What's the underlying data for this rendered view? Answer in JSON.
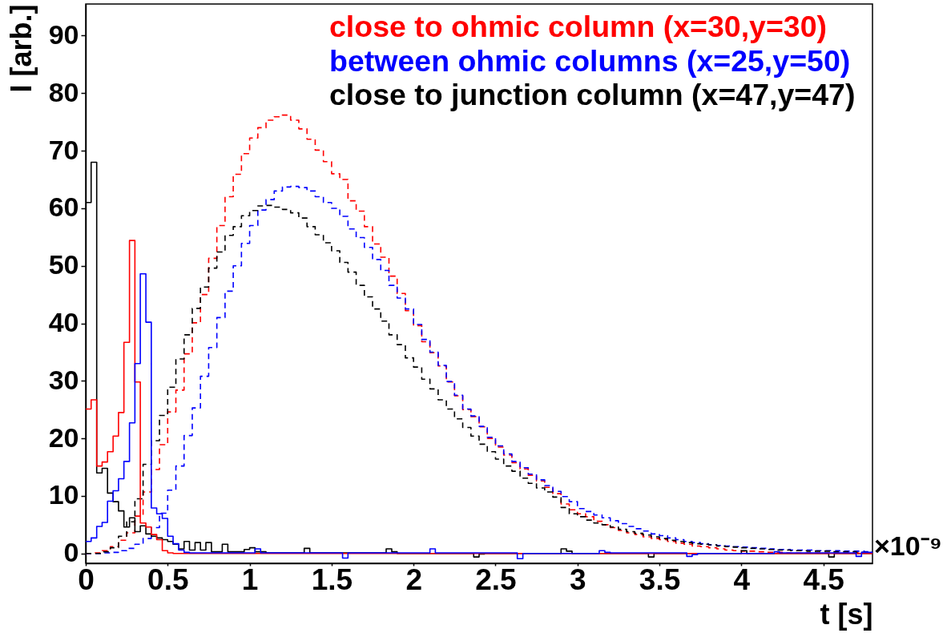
{
  "chart_data": {
    "type": "step",
    "xlabel": "t [s]",
    "ylabel": "I [arb.]",
    "xlim": [
      0,
      4.8
    ],
    "ylim": [
      -1.7,
      95.5
    ],
    "xticks": [
      0,
      0.5,
      1,
      1.5,
      2,
      2.5,
      3,
      3.5,
      4,
      4.5
    ],
    "yticks": [
      0,
      10,
      20,
      30,
      40,
      50,
      60,
      70,
      80,
      90
    ],
    "legend": "top right",
    "annotations": [
      "×10⁻⁹"
    ],
    "x": [
      0,
      0.05,
      0.1,
      0.15,
      0.2,
      0.25,
      0.3,
      0.35,
      0.4,
      0.45,
      0.5,
      0.55,
      0.6,
      0.65,
      0.7,
      0.75,
      0.8,
      0.85,
      0.9,
      0.95,
      1.0,
      1.05,
      1.1,
      1.15,
      1.2,
      1.25,
      1.3,
      1.35,
      1.4,
      1.45,
      1.5,
      1.55,
      1.6,
      1.65,
      1.7,
      1.75,
      1.8,
      1.85,
      1.9,
      1.95,
      2.0,
      2.05,
      2.1,
      2.15,
      2.2,
      2.25,
      2.3,
      2.35,
      2.4,
      2.45,
      2.5,
      2.55,
      2.6,
      2.65,
      2.7,
      2.75,
      2.8,
      2.85,
      2.9,
      2.95,
      3.0,
      3.05,
      3.1,
      3.15,
      3.2,
      3.25,
      3.3,
      3.35,
      3.4,
      3.45,
      3.5,
      3.55,
      3.6,
      3.65,
      3.7,
      3.75,
      3.8,
      3.85,
      3.9,
      3.95,
      4.0,
      4.05,
      4.1,
      4.15,
      4.2,
      4.25,
      4.3,
      4.35,
      4.4,
      4.45,
      4.5,
      4.55,
      4.6,
      4.65,
      4.7,
      4.75,
      4.8
    ],
    "series": [
      {
        "name": "close to ohmic column (x=30,y=30)",
        "color": "#ff0000",
        "line_style": "dashed",
        "values": [
          0,
          0.1,
          0.5,
          1.2,
          2.3,
          3.6,
          6.5,
          10.7,
          14.6,
          18.9,
          24.6,
          28.4,
          34.7,
          40.1,
          45.0,
          51.3,
          57.0,
          62.0,
          65.9,
          69.5,
          72.2,
          74.0,
          75.3,
          75.9,
          76.2,
          75.3,
          73.8,
          72.0,
          70.1,
          68.1,
          66.0,
          65.0,
          61.3,
          59.5,
          56.8,
          53.8,
          51.5,
          48.2,
          45.2,
          42.2,
          39.6,
          36.8,
          34.9,
          32.6,
          29.8,
          27.4,
          25.0,
          23.8,
          22.0,
          20.0,
          18.5,
          17.1,
          15.8,
          14.7,
          13.6,
          12.6,
          11.5,
          10.4,
          8.6,
          7.6,
          6.9,
          6.4,
          5.6,
          5.0,
          4.5,
          4.0,
          3.6,
          3.3,
          2.9,
          2.6,
          2.4,
          2.1,
          1.8,
          1.6,
          1.3,
          1.2,
          1.0,
          0.8,
          0.6,
          0.5,
          0.4,
          0.4,
          0.3,
          0.2,
          0.2,
          0.1,
          0.1,
          0.1,
          0.1,
          0.1,
          0.1,
          0.1,
          0.1,
          0.1,
          0.1,
          0.1,
          0.1
        ]
      },
      {
        "name": "between ohmic columns (x=25,y=50)",
        "color": "#0000ff",
        "line_style": "dashed",
        "values": [
          0,
          0,
          0.1,
          0.2,
          0.5,
          0.9,
          1.6,
          2.6,
          4.5,
          7.0,
          11.0,
          15.2,
          20.5,
          25.3,
          30.8,
          35.8,
          41.0,
          45.6,
          50.0,
          53.9,
          57.0,
          59.7,
          61.5,
          63.0,
          63.7,
          63.8,
          63.6,
          63.0,
          62.0,
          61.0,
          60.0,
          58.6,
          56.4,
          54.9,
          53.2,
          51.1,
          49.2,
          46.6,
          44.4,
          42.5,
          39.8,
          37.2,
          35.0,
          32.7,
          29.9,
          27.5,
          25.1,
          23.9,
          22.1,
          20.2,
          18.7,
          17.3,
          16.0,
          14.9,
          13.8,
          12.8,
          11.8,
          10.8,
          9.9,
          9.0,
          7.8,
          7.3,
          6.7,
          6.2,
          5.7,
          5.2,
          4.7,
          4.3,
          3.9,
          3.4,
          3.1,
          2.7,
          2.4,
          2.1,
          1.9,
          1.7,
          1.5,
          1.4,
          1.3,
          1.2,
          1.1,
          1.0,
          0.9,
          0.8,
          0.7,
          0.7,
          0.6,
          0.6,
          0.6,
          0.5,
          0.5,
          0.5,
          0.4,
          0.4,
          0.4,
          0.3,
          0.3
        ]
      },
      {
        "name": "close to junction column (x=47,y=47)",
        "color": "#000000",
        "line_style": "dashed",
        "values": [
          0,
          0,
          0.3,
          1.0,
          3.0,
          5.5,
          9.5,
          15.5,
          19.6,
          24.0,
          28.9,
          33.8,
          38.0,
          42.6,
          46.3,
          49.6,
          52.4,
          55.3,
          56.8,
          58.7,
          59.6,
          60.4,
          60.5,
          60.2,
          59.8,
          59.2,
          58.3,
          56.8,
          55.4,
          54.0,
          52.6,
          50.6,
          48.9,
          46.6,
          44.6,
          42.5,
          40.4,
          38.0,
          36.3,
          34.0,
          32.4,
          30.3,
          28.6,
          26.7,
          25.1,
          23.4,
          21.9,
          20.4,
          19.0,
          17.7,
          16.4,
          15.2,
          14.3,
          13.1,
          12.2,
          11.4,
          10.7,
          9.8,
          8.0,
          6.9,
          6.4,
          5.8,
          5.3,
          5.0,
          4.6,
          4.2,
          3.8,
          3.5,
          3.2,
          2.9,
          2.6,
          2.3,
          2.1,
          1.9,
          1.7,
          1.6,
          1.5,
          1.3,
          1.2,
          1.1,
          1.0,
          0.9,
          0.8,
          0.7,
          0.6,
          0.6,
          0.5,
          0.5,
          0.4,
          0.4,
          0.4,
          0.3,
          0.3,
          0.3,
          0.2,
          0.2,
          0.2
        ]
      },
      {
        "color": "#000000",
        "line_style": "solid",
        "x": [
          0,
          0.033,
          0.067,
          0.1,
          0.133,
          0.167,
          0.2,
          0.233,
          0.267,
          0.3,
          0.333,
          0.367,
          0.4,
          0.433,
          0.467,
          0.5,
          0.533,
          0.567,
          0.6,
          0.633,
          0.667,
          0.7,
          0.733,
          0.767,
          0.8,
          0.833,
          0.867,
          0.9,
          0.933,
          0.967,
          1.0,
          1.033,
          1.1,
          1.333,
          1.367,
          1.833,
          1.867,
          1.9,
          2.367,
          2.4,
          2.433,
          2.9,
          2.933,
          2.967,
          3.433,
          3.467,
          4.0,
          4.033,
          4.533,
          4.567,
          4.8
        ],
        "values": [
          61.0,
          68.0,
          14.0,
          14.8,
          10.5,
          9.0,
          7.4,
          4.6,
          6.2,
          3.8,
          4.8,
          3.4,
          3.0,
          2.7,
          2.4,
          2.1,
          1.6,
          0.8,
          2.1,
          0.6,
          1.9,
          0.6,
          1.9,
          0.3,
          0.3,
          1.6,
          0.3,
          0.3,
          0.3,
          0.7,
          1.0,
          0.3,
          0.1,
          0.9,
          0.1,
          0.8,
          0.3,
          0,
          -0.6,
          -0.1,
          0,
          0.8,
          0.4,
          0,
          -0.6,
          0,
          0.5,
          0,
          -0.6,
          0,
          0
        ]
      },
      {
        "color": "#ff0000",
        "line_style": "solid",
        "x": [
          0,
          0.033,
          0.067,
          0.1,
          0.133,
          0.167,
          0.2,
          0.233,
          0.267,
          0.3,
          0.333,
          0.367,
          0.4,
          0.433,
          0.467,
          0.5,
          0.533,
          4.8
        ],
        "values": [
          25.1,
          26.7,
          15.2,
          15.9,
          17.7,
          20.4,
          24.5,
          36.7,
          54.4,
          29.8,
          5.3,
          4.6,
          3.3,
          2.4,
          0.5,
          0.1,
          0,
          0
        ]
      },
      {
        "color": "#0000ff",
        "line_style": "solid",
        "x": [
          0,
          0.033,
          0.067,
          0.1,
          0.133,
          0.167,
          0.2,
          0.233,
          0.267,
          0.3,
          0.333,
          0.367,
          0.4,
          0.433,
          0.467,
          0.5,
          0.533,
          0.567,
          0.6,
          0.633,
          1.033,
          1.067,
          1.567,
          1.6,
          2.1,
          2.133,
          2.633,
          2.667,
          3.133,
          3.167,
          3.2,
          3.667,
          3.7,
          3.733,
          4.2,
          4.233,
          4.7,
          4.733,
          4.8
        ],
        "values": [
          2.1,
          2.7,
          4.7,
          5.4,
          9.1,
          10.9,
          13.0,
          16.0,
          22.7,
          33.0,
          48.6,
          40.2,
          7.9,
          6.9,
          6.1,
          3.0,
          1.7,
          0.6,
          0.2,
          0.1,
          0.8,
          0.1,
          -0.8,
          0.1,
          0.8,
          0.1,
          -0.9,
          0,
          0.5,
          0.2,
          0.1,
          -0.5,
          -0.2,
          0,
          0.3,
          0.1,
          -0.5,
          0.2,
          0.2
        ]
      }
    ]
  }
}
